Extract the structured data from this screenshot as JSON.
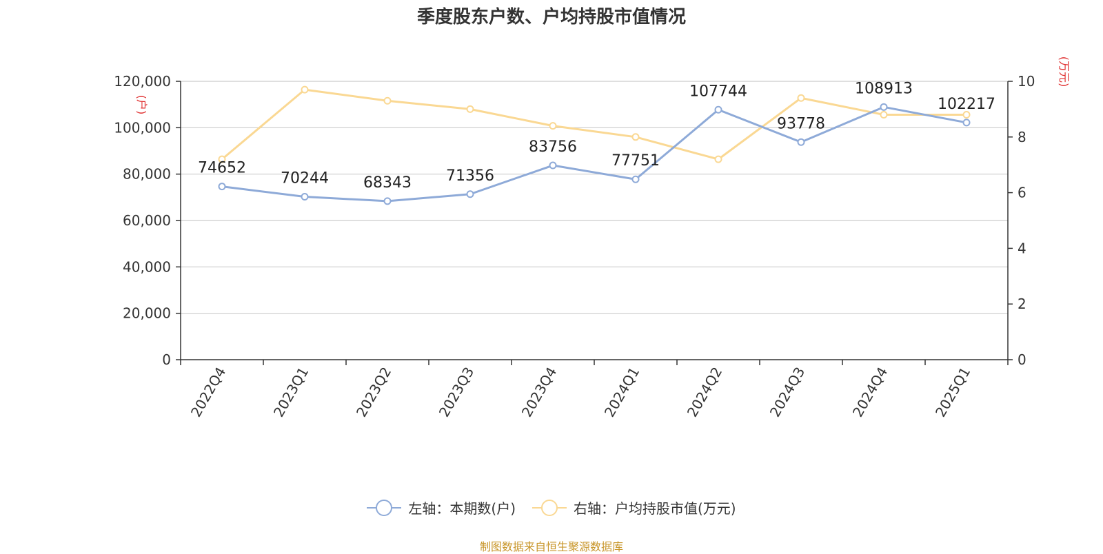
{
  "title": "季度股东户数、户均持股市值情况",
  "source_note": "制图数据来自恒生聚源数据库",
  "colors": {
    "left_series": "#8eaad8",
    "right_series": "#fad893",
    "unit_label": "#e03030",
    "source": "#c8962a"
  },
  "chart_data": {
    "type": "line",
    "title": "季度股东户数、户均持股市值情况",
    "categories": [
      "2022Q4",
      "2023Q1",
      "2023Q2",
      "2023Q3",
      "2023Q4",
      "2024Q1",
      "2024Q2",
      "2024Q3",
      "2024Q4",
      "2025Q1"
    ],
    "y_left": {
      "unit": "(户)",
      "min": 0,
      "max": 120000,
      "ticks": [
        "0",
        "20,000",
        "40,000",
        "60,000",
        "80,000",
        "100,000",
        "120,000"
      ]
    },
    "y_right": {
      "unit": "(万元)",
      "min": 0,
      "max": 10,
      "ticks": [
        "0",
        "2",
        "4",
        "6",
        "8",
        "10"
      ]
    },
    "grid": true,
    "legend_position": "bottom",
    "series": [
      {
        "name": "左轴：本期数(户)",
        "axis": "left",
        "values": [
          74652,
          70244,
          68343,
          71356,
          83756,
          77751,
          107744,
          93778,
          108913,
          102217
        ],
        "labels": [
          "74652",
          "70244",
          "68343",
          "71356",
          "83756",
          "77751",
          "107744",
          "93778",
          "108913",
          "102217"
        ]
      },
      {
        "name": "右轴：户均持股市值(万元)",
        "axis": "right",
        "values": [
          7.2,
          9.7,
          9.3,
          9.0,
          8.4,
          8.0,
          7.2,
          9.4,
          8.8,
          8.8
        ]
      }
    ]
  }
}
